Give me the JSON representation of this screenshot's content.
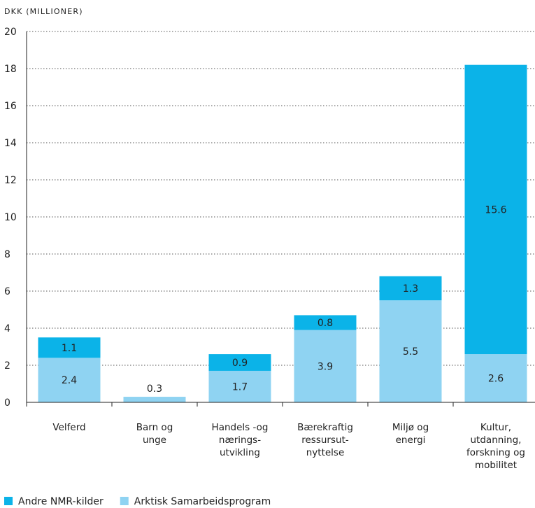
{
  "chart_data": {
    "type": "bar",
    "stacked": true,
    "unit_label": "DKK (MILLIONER)",
    "categories": [
      [
        "Velferd"
      ],
      [
        "Barn og",
        "unge"
      ],
      [
        "Handels -og",
        "nærings-",
        "utvikling"
      ],
      [
        "Bærekraftig",
        "ressursut-",
        "nyttelse"
      ],
      [
        "Miljø og",
        "energi"
      ],
      [
        "Kultur,",
        "utdanning,",
        "forskning og",
        "mobilitet"
      ]
    ],
    "series": [
      {
        "name": "Arktisk Samarbeidsprogram",
        "color": "#8fd3f2",
        "values": [
          2.4,
          0.3,
          1.7,
          3.9,
          5.5,
          2.6
        ],
        "labels": [
          "2.4",
          "0.3",
          "1.7",
          "3.9",
          "5.5",
          "2.6"
        ]
      },
      {
        "name": "Andre NMR-kilder",
        "color": "#0bb3e8",
        "values": [
          1.1,
          0,
          0.9,
          0.8,
          1.3,
          15.6
        ],
        "labels": [
          "1.1",
          "",
          "0.9",
          "0.8",
          "1.3",
          "15.6"
        ]
      }
    ],
    "ylim": [
      0,
      20
    ],
    "yticks": [
      0,
      2,
      4,
      6,
      8,
      10,
      12,
      14,
      16,
      18,
      20
    ],
    "grid": true,
    "legend_position": "bottom-left",
    "legend": [
      {
        "label": "Andre NMR-kilder",
        "color": "#0bb3e8"
      },
      {
        "label": "Arktisk Samarbeidsprogram",
        "color": "#8fd3f2"
      }
    ]
  }
}
